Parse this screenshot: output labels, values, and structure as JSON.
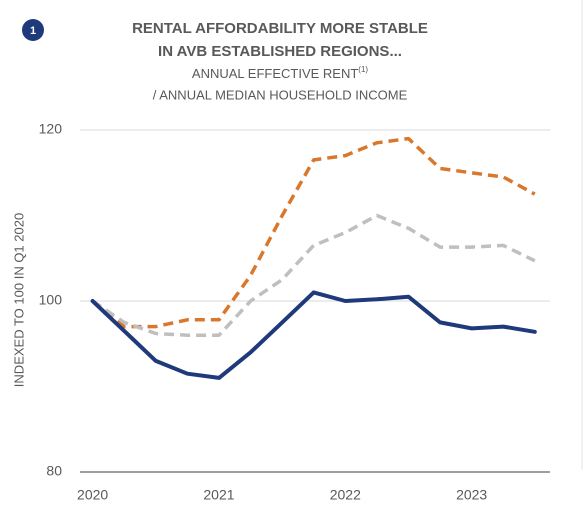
{
  "badge": "1",
  "chart_data": {
    "type": "line",
    "title": [
      "RENTAL AFFORDABILITY MORE STABLE",
      "IN AVB ESTABLISHED REGIONS..."
    ],
    "subtitle": [
      "ANNUAL EFFECTIVE RENT",
      "/ ANNUAL MEDIAN HOUSEHOLD INCOME"
    ],
    "subtitle_footnote": "(1)",
    "y_label": "INDEXED TO 100 IN Q1 2020",
    "x": [
      2020,
      2020.25,
      2020.5,
      2020.75,
      2021,
      2021.25,
      2021.5,
      2021.75,
      2022,
      2022.25,
      2022.5,
      2022.75,
      2023,
      2023.25,
      2023.5
    ],
    "series": [
      {
        "color": "#d9782d",
        "dash": true,
        "values": [
          100,
          97,
          97,
          97.8,
          97.8,
          103,
          110,
          116.5,
          117,
          118.5,
          119,
          115.5,
          115,
          114.5,
          112.5
        ]
      },
      {
        "color": "#bfbfbf",
        "dash": true,
        "values": [
          100,
          97.5,
          96.2,
          96,
          96,
          100,
          102.5,
          106.5,
          108,
          110,
          108.5,
          106.3,
          106.3,
          106.5,
          104.7
        ]
      },
      {
        "color": "#1f3a7a",
        "dash": false,
        "values": [
          100,
          96.5,
          93,
          91.5,
          91,
          94,
          97.5,
          101,
          100,
          100.2,
          100.5,
          97.5,
          96.8,
          97,
          96.4
        ]
      }
    ],
    "xlim": [
      2019.9,
      2023.62
    ],
    "xticks": [
      2020,
      2021,
      2022,
      2023
    ],
    "ylim": [
      80,
      120
    ],
    "yticks": [
      80,
      100,
      120
    ],
    "grid": true
  }
}
